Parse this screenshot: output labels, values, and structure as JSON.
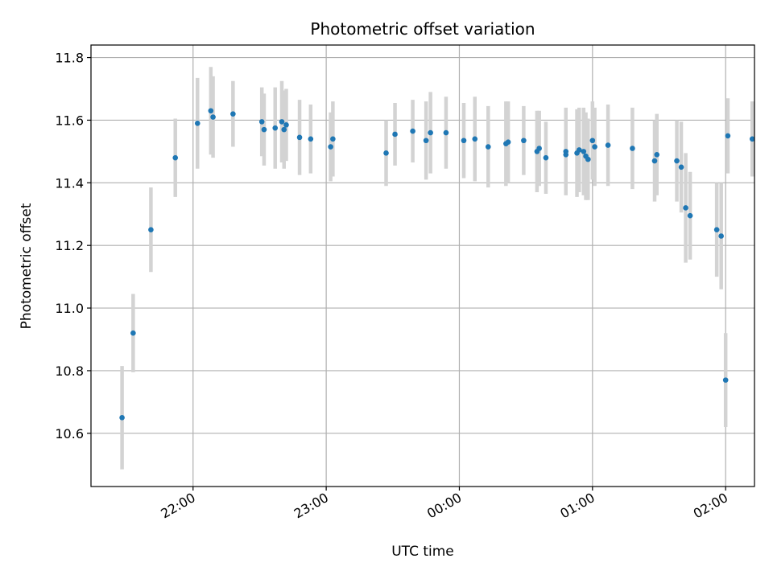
{
  "chart_data": {
    "type": "scatter",
    "title": "Photometric offset variation",
    "xlabel": "UTC time",
    "ylabel": "Photometric offset",
    "x_ticks": [
      "22:00",
      "23:00",
      "00:00",
      "01:00",
      "02:00"
    ],
    "y_ticks": [
      "10.6",
      "10.8",
      "11.0",
      "11.2",
      "11.4",
      "11.6",
      "11.8"
    ],
    "xlim": [
      "21:14",
      "02:13"
    ],
    "ylim": [
      10.43,
      11.84
    ],
    "grid": true,
    "colors": {
      "points": "#1f77b4",
      "error_bars": "#d3d3d3",
      "grid": "#b0b0b0"
    },
    "series": [
      {
        "x": [
          "21:28",
          "21:33",
          "21:41",
          "21:52",
          "22:02",
          "22:08",
          "22:09",
          "22:18",
          "22:31",
          "22:32",
          "22:37",
          "22:40",
          "22:41",
          "22:42",
          "22:48",
          "22:53",
          "23:02",
          "23:03",
          "23:27",
          "23:31",
          "23:39",
          "23:45",
          "23:47",
          "23:54",
          "24:02",
          "24:07",
          "24:13",
          "24:21",
          "24:22",
          "24:29",
          "24:35",
          "24:36",
          "24:39",
          "24:48",
          "24:48",
          "24:53",
          "24:54",
          "24:56",
          "24:57",
          "24:58",
          "25:00",
          "25:01",
          "25:07",
          "25:18",
          "25:28",
          "25:29",
          "25:38",
          "25:40",
          "25:42",
          "25:44",
          "25:56",
          "25:58",
          "26:00",
          "26:01",
          "26:12"
        ],
        "y": [
          10.65,
          10.92,
          11.25,
          11.48,
          11.59,
          11.63,
          11.61,
          11.62,
          11.595,
          11.57,
          11.575,
          11.595,
          11.57,
          11.585,
          11.545,
          11.54,
          11.515,
          11.54,
          11.495,
          11.555,
          11.565,
          11.535,
          11.56,
          11.56,
          11.535,
          11.54,
          11.515,
          11.525,
          11.53,
          11.535,
          11.5,
          11.51,
          11.48,
          11.49,
          11.5,
          11.495,
          11.505,
          11.5,
          11.485,
          11.475,
          11.535,
          11.515,
          11.52,
          11.51,
          11.47,
          11.49,
          11.47,
          11.45,
          11.32,
          11.295,
          11.25,
          11.23,
          10.77,
          11.55,
          11.54
        ],
        "err": [
          0.165,
          0.125,
          0.135,
          0.125,
          0.145,
          0.14,
          0.13,
          0.105,
          0.11,
          0.115,
          0.13,
          0.13,
          0.125,
          0.115,
          0.12,
          0.11,
          0.11,
          0.12,
          0.105,
          0.1,
          0.1,
          0.125,
          0.13,
          0.115,
          0.12,
          0.135,
          0.13,
          0.135,
          0.13,
          0.11,
          0.13,
          0.12,
          0.115,
          0.12,
          0.14,
          0.14,
          0.135,
          0.14,
          0.14,
          0.13,
          0.125,
          0.125,
          0.13,
          0.13,
          0.13,
          0.13,
          0.13,
          0.145,
          0.175,
          0.14,
          0.15,
          0.17,
          0.15,
          0.12,
          0.12
        ]
      }
    ]
  }
}
